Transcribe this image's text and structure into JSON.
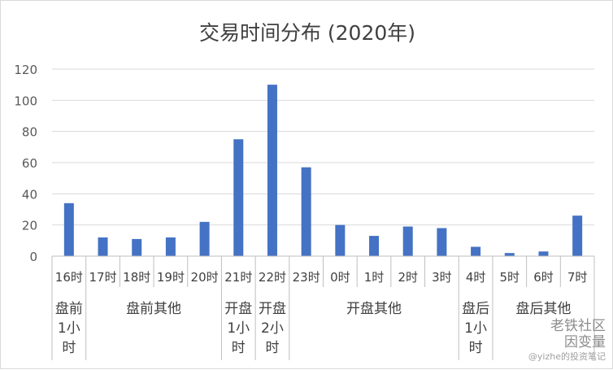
{
  "chart_data": {
    "type": "bar",
    "title": "交易时间分布 (2020年)",
    "xlabel": "",
    "ylabel": "",
    "ylim": [
      0,
      120
    ],
    "yticks": [
      0,
      20,
      40,
      60,
      80,
      100,
      120
    ],
    "grid": true,
    "legend": "none",
    "bar_color": "#4472c4",
    "categories": [
      "16时",
      "17时",
      "18时",
      "19时",
      "20时",
      "21时",
      "22时",
      "23时",
      "0时",
      "1时",
      "2时",
      "3时",
      "4时",
      "5时",
      "6时",
      "7时"
    ],
    "values": [
      34,
      12,
      11,
      12,
      22,
      75,
      110,
      57,
      20,
      13,
      19,
      18,
      6,
      2,
      3,
      26
    ],
    "groups": [
      {
        "label": "盘前1小时",
        "lines": [
          "盘前",
          "1小",
          "时"
        ],
        "start": 0,
        "end": 0
      },
      {
        "label": "盘前其他",
        "lines": [
          "盘前其他"
        ],
        "start": 1,
        "end": 4
      },
      {
        "label": "开盘1小时",
        "lines": [
          "开盘",
          "1小",
          "时"
        ],
        "start": 5,
        "end": 5
      },
      {
        "label": "开盘2小时",
        "lines": [
          "开盘",
          "2小",
          "时"
        ],
        "start": 6,
        "end": 6
      },
      {
        "label": "开盘其他",
        "lines": [
          "开盘其他"
        ],
        "start": 7,
        "end": 11
      },
      {
        "label": "盘后1小时",
        "lines": [
          "盘后",
          "1小",
          "时"
        ],
        "start": 12,
        "end": 12
      },
      {
        "label": "盘后其他",
        "lines": [
          "盘后其他"
        ],
        "start": 13,
        "end": 15
      }
    ]
  },
  "watermark": {
    "top": "老铁社区",
    "name": "因变量",
    "bottom": "@yizhe的投资笔记"
  }
}
